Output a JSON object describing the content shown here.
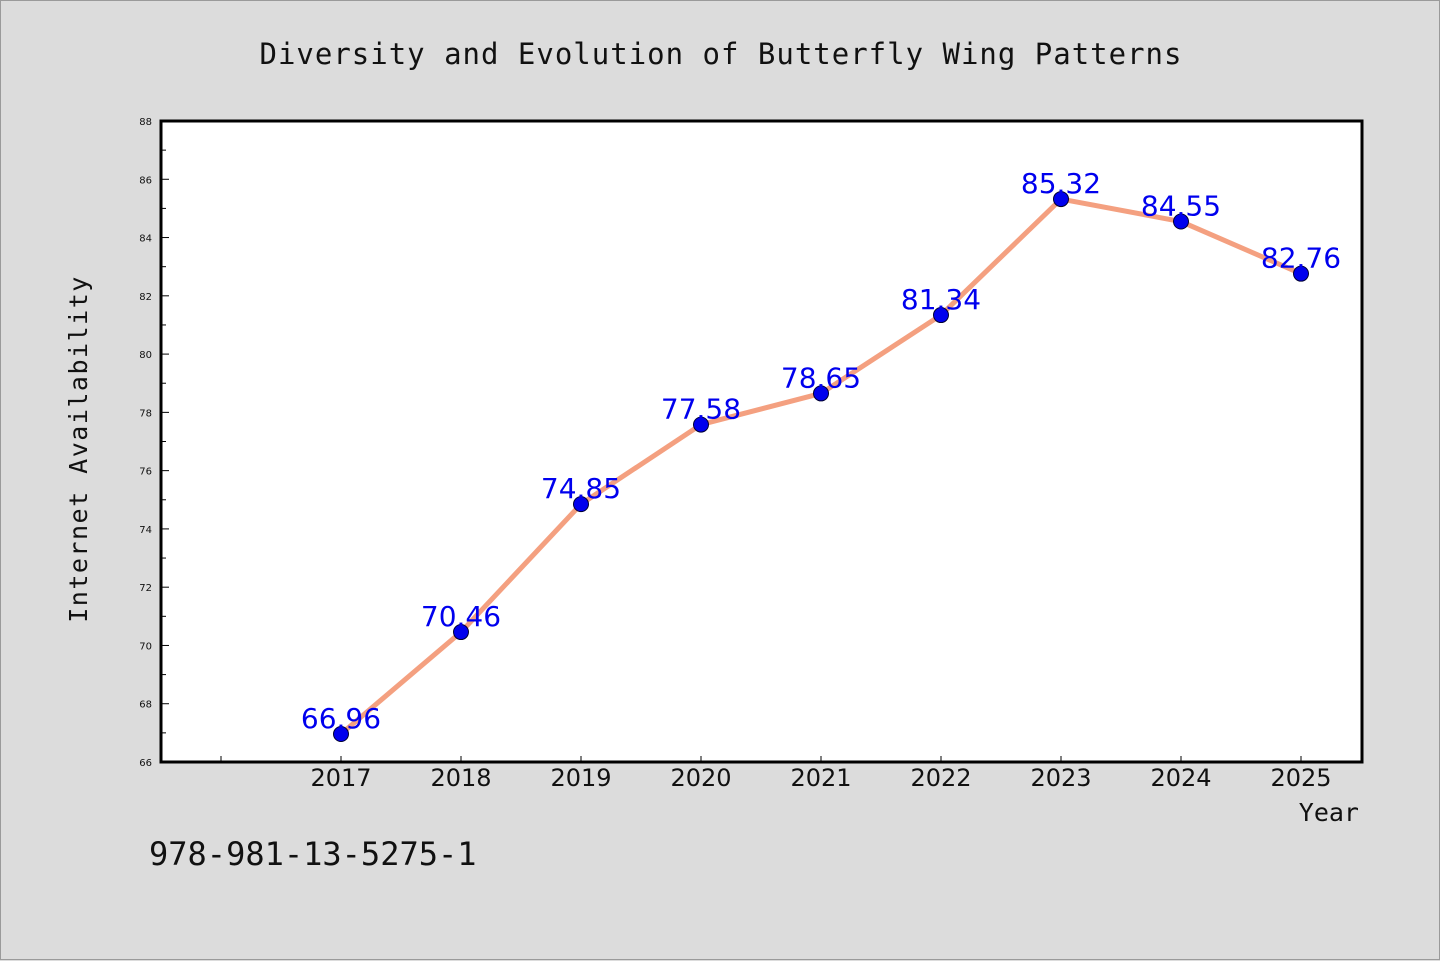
{
  "chart_data": {
    "type": "line",
    "title": "Diversity and Evolution of Butterfly Wing Patterns",
    "xlabel": "Year",
    "ylabel": "Internet Availability",
    "categories": [
      "2017",
      "2018",
      "2019",
      "2020",
      "2021",
      "2022",
      "2023",
      "2024",
      "2025"
    ],
    "series": [
      {
        "values": [
          66.96,
          70.46,
          74.85,
          77.58,
          78.65,
          81.34,
          85.32,
          84.55,
          82.76
        ],
        "line_color": "#f4a080",
        "marker_color": "#0000ee",
        "label_color": "#0000ee"
      }
    ],
    "ylim": [
      66,
      88
    ],
    "yticks": [
      "66",
      "68",
      "70",
      "72",
      "74",
      "76",
      "78",
      "80",
      "82",
      "84",
      "86",
      "88"
    ],
    "grid": false,
    "legend": "none"
  },
  "footer": {
    "identifier": "978-981-13-5275-1"
  }
}
